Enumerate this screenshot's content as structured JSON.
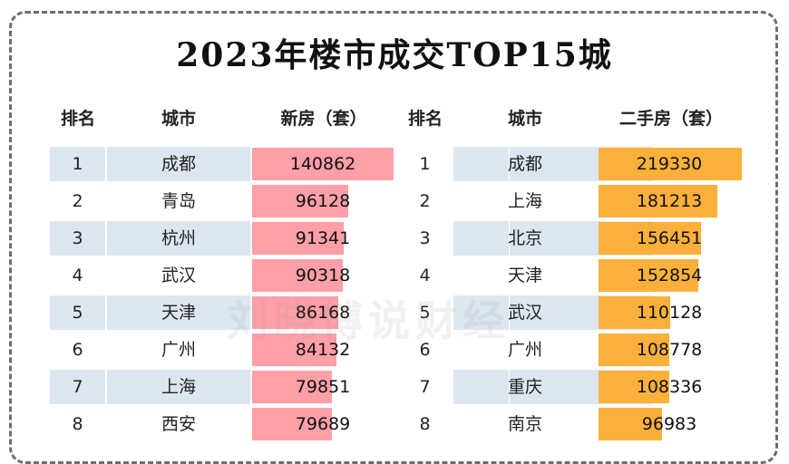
{
  "title": "2023年楼市成交TOP15城",
  "watermark": "刘晓博说财经",
  "headers": {
    "rank": "排名",
    "city": "城市",
    "new_homes": "新房（套）",
    "rank2": "排名",
    "city2": "城市",
    "second_hand": "二手房（套）"
  },
  "colors": {
    "new_bar": "#ff9fa7",
    "second_bar": "#fbb03b",
    "row_band": "#dce6f1"
  },
  "chart_data": {
    "type": "table",
    "title": "2023年楼市成交TOP15城",
    "new_homes": [
      {
        "rank": "1",
        "city": "成都",
        "value": 140862
      },
      {
        "rank": "2",
        "city": "青岛",
        "value": 96128
      },
      {
        "rank": "3",
        "city": "杭州",
        "value": 91341
      },
      {
        "rank": "4",
        "city": "武汉",
        "value": 90318
      },
      {
        "rank": "5",
        "city": "天津",
        "value": 86168
      },
      {
        "rank": "6",
        "city": "广州",
        "value": 84132
      },
      {
        "rank": "7",
        "city": "上海",
        "value": 79851
      },
      {
        "rank": "8",
        "city": "西安",
        "value": 79689
      }
    ],
    "second_hand": [
      {
        "rank": "1",
        "city": "成都",
        "value": 219330
      },
      {
        "rank": "2",
        "city": "上海",
        "value": 181213
      },
      {
        "rank": "3",
        "city": "北京",
        "value": 156451
      },
      {
        "rank": "4",
        "city": "天津",
        "value": 152854
      },
      {
        "rank": "5",
        "city": "武汉",
        "value": 110128
      },
      {
        "rank": "6",
        "city": "广州",
        "value": 108778
      },
      {
        "rank": "7",
        "city": "重庆",
        "value": 108336
      },
      {
        "rank": "8",
        "city": "南京",
        "value": 96983
      }
    ]
  }
}
